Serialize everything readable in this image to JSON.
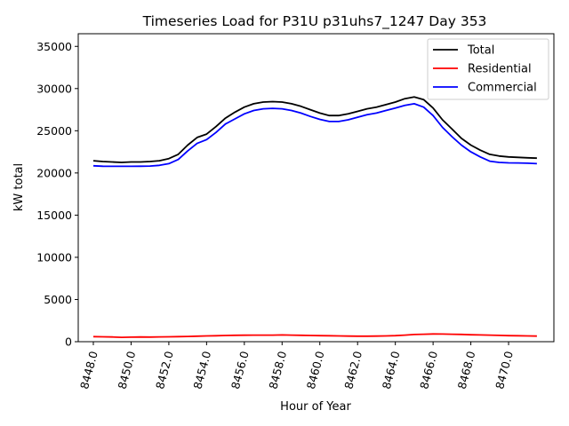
{
  "chart_data": {
    "type": "line",
    "title": "Timeseries Load for P31U p31uhs7_1247  Day 353",
    "xlabel": "Hour of Year",
    "ylabel": "kW total",
    "xlim": [
      8447.2,
      8472.4
    ],
    "ylim": [
      0,
      36500
    ],
    "x_ticks": [
      8448,
      8450,
      8452,
      8454,
      8456,
      8458,
      8460,
      8462,
      8464,
      8466,
      8468,
      8470
    ],
    "x_tick_labels": [
      "8448.0",
      "8450.0",
      "8452.0",
      "8454.0",
      "8456.0",
      "8458.0",
      "8460.0",
      "8462.0",
      "8464.0",
      "8466.0",
      "8468.0",
      "8470.0"
    ],
    "y_ticks": [
      0,
      5000,
      10000,
      15000,
      20000,
      25000,
      30000,
      35000
    ],
    "y_tick_labels": [
      "0",
      "5000",
      "10000",
      "15000",
      "20000",
      "25000",
      "30000",
      "35000"
    ],
    "grid": false,
    "legend_position": "top-right",
    "x": [
      8448,
      8448.5,
      8449,
      8449.5,
      8450,
      8450.5,
      8451,
      8451.5,
      8452,
      8452.5,
      8453,
      8453.5,
      8454,
      8454.5,
      8455,
      8455.5,
      8456,
      8456.5,
      8457,
      8457.5,
      8458,
      8458.5,
      8459,
      8459.5,
      8460,
      8460.5,
      8461,
      8461.5,
      8462,
      8462.5,
      8463,
      8463.5,
      8464,
      8464.5,
      8465,
      8465.5,
      8466,
      8466.5,
      8467,
      8467.5,
      8468,
      8468.5,
      8469,
      8469.5,
      8470,
      8470.5,
      8471,
      8471.5
    ],
    "series": [
      {
        "name": "Total",
        "color": "#000000",
        "values": [
          21450,
          21350,
          21300,
          21250,
          21300,
          21300,
          21350,
          21450,
          21700,
          22200,
          23300,
          24200,
          24600,
          25500,
          26500,
          27200,
          27800,
          28200,
          28400,
          28450,
          28400,
          28200,
          27900,
          27500,
          27100,
          26800,
          26800,
          27000,
          27300,
          27600,
          27800,
          28100,
          28400,
          28800,
          29000,
          28700,
          27700,
          26300,
          25200,
          24100,
          23300,
          22700,
          22200,
          22000,
          21900,
          21850,
          21800,
          21750
        ]
      },
      {
        "name": "Residential",
        "color": "#ff0000",
        "values": [
          600,
          580,
          560,
          520,
          540,
          560,
          550,
          570,
          580,
          600,
          620,
          650,
          680,
          700,
          740,
          760,
          770,
          780,
          780,
          780,
          800,
          780,
          760,
          740,
          720,
          700,
          680,
          660,
          650,
          650,
          660,
          680,
          720,
          780,
          850,
          880,
          920,
          900,
          880,
          860,
          820,
          800,
          780,
          750,
          720,
          700,
          680,
          660
        ]
      },
      {
        "name": "Commercial",
        "color": "#0000ff",
        "values": [
          20850,
          20800,
          20780,
          20780,
          20790,
          20800,
          20820,
          20900,
          21100,
          21600,
          22600,
          23500,
          23950,
          24800,
          25800,
          26400,
          27000,
          27400,
          27600,
          27650,
          27600,
          27400,
          27100,
          26700,
          26350,
          26100,
          26100,
          26300,
          26600,
          26900,
          27100,
          27400,
          27700,
          28000,
          28200,
          27800,
          26800,
          25400,
          24300,
          23300,
          22500,
          21900,
          21400,
          21250,
          21200,
          21180,
          21150,
          21100
        ]
      }
    ]
  }
}
